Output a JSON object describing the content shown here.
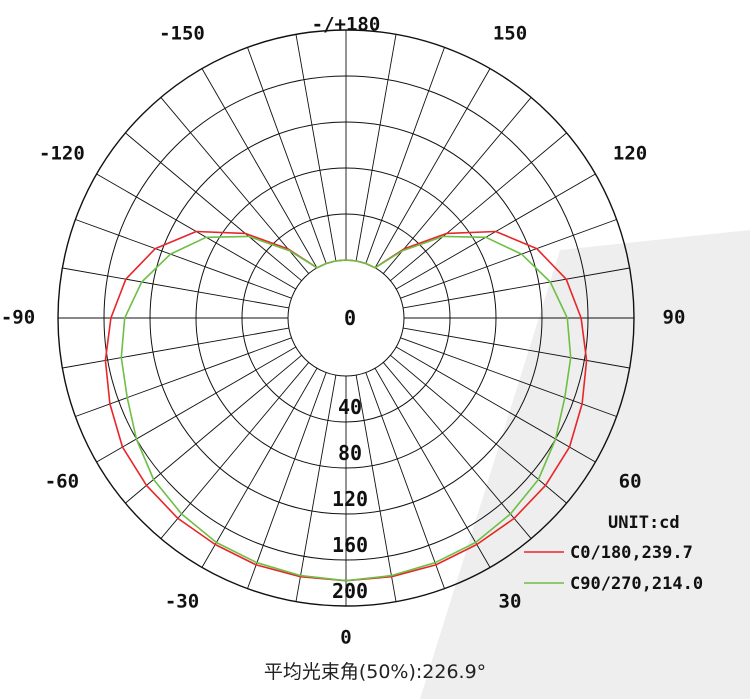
{
  "chart_data": {
    "type": "polar-line",
    "unit_label": "UNIT:cd",
    "caption": "平均光束角(50%):226.9°",
    "radial_ticks": [
      {
        "value": 0,
        "label": "0"
      },
      {
        "value": 40,
        "label": "40"
      },
      {
        "value": 80,
        "label": "80"
      },
      {
        "value": 120,
        "label": "120"
      },
      {
        "value": 160,
        "label": "160"
      },
      {
        "value": 200,
        "label": "200"
      }
    ],
    "radial_max": 200,
    "angle_labels": [
      {
        "angle": 0,
        "label": "0"
      },
      {
        "angle": 30,
        "label": "30"
      },
      {
        "angle": 60,
        "label": "60"
      },
      {
        "angle": 90,
        "label": "90"
      },
      {
        "angle": 120,
        "label": "120"
      },
      {
        "angle": 150,
        "label": "150"
      },
      {
        "angle": 180,
        "label": "-/+180"
      },
      {
        "angle": -150,
        "label": "-150"
      },
      {
        "angle": -120,
        "label": "-120"
      },
      {
        "angle": -90,
        "label": "-90"
      },
      {
        "angle": -60,
        "label": "-60"
      },
      {
        "angle": -30,
        "label": "-30"
      }
    ],
    "spoke_step_deg": 10,
    "series": [
      {
        "name": "C0/180,239.7",
        "color": "#e8262a",
        "angles": [
          0,
          10,
          20,
          30,
          40,
          50,
          60,
          70,
          80,
          90,
          100,
          110,
          120,
          130,
          140,
          150,
          160,
          170,
          180
        ],
        "values": [
          178,
          178,
          178,
          177,
          177,
          176,
          174,
          168,
          162,
          154,
          144,
          126,
          100,
          64,
          28,
          0,
          0,
          0,
          0
        ]
      },
      {
        "name": "C90/270,214.0",
        "color": "#6dbf45",
        "angles": [
          0,
          10,
          20,
          30,
          40,
          50,
          60,
          70,
          80,
          90,
          100,
          110,
          120,
          130,
          140,
          150,
          160,
          170,
          180
        ],
        "values": [
          178,
          177,
          176,
          175,
          172,
          168,
          160,
          152,
          148,
          142,
          130,
          112,
          90,
          60,
          26,
          0,
          0,
          0,
          0
        ]
      }
    ]
  }
}
